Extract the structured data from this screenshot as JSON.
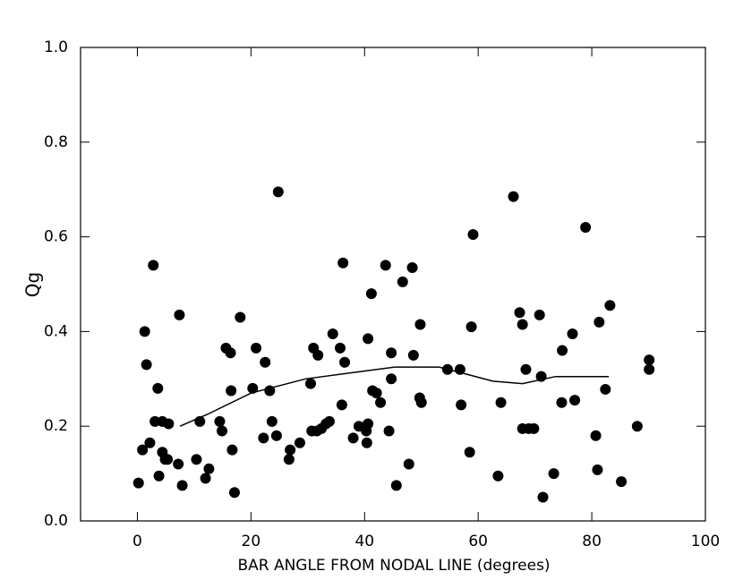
{
  "chart_data": {
    "type": "scatter",
    "x_label": "BAR ANGLE FROM NODAL LINE (degrees)",
    "y_label": "Qg",
    "x": [
      0.2,
      1.3,
      1.6,
      0.9,
      2.2,
      2.8,
      3.6,
      3.1,
      3.8,
      4.4,
      4.9,
      4.4,
      5.5,
      5.3,
      7.4,
      7.2,
      7.9,
      10.4,
      11,
      12,
      12.6,
      14.5,
      14.9,
      15.6,
      16.4,
      16.5,
      16.7,
      17.1,
      18.1,
      20.3,
      20.9,
      22.5,
      22.2,
      23.3,
      23.7,
      24.5,
      24.8,
      26.7,
      26.9,
      28.6,
      30.5,
      31,
      31.8,
      30.7,
      31.6,
      32.4,
      33.2,
      33.8,
      34.4,
      35.7,
      36.2,
      36.5,
      36,
      38,
      39,
      40.3,
      40.4,
      40.6,
      41.2,
      41.4,
      42.1,
      42.8,
      40.6,
      43.7,
      44.7,
      44.7,
      44.3,
      45.6,
      46.7,
      47.8,
      48.4,
      48.6,
      49.8,
      49.7,
      50,
      54.6,
      56.8,
      57,
      58.5,
      58.8,
      59.1,
      63.5,
      64,
      66.2,
      67.3,
      67.8,
      67.8,
      68.9,
      68.4,
      69.8,
      70.8,
      71.1,
      71.4,
      73.3,
      74.7,
      74.8,
      76.6,
      77,
      78.9,
      80.7,
      81.3,
      81,
      82.4,
      83.2,
      85.2,
      88,
      90.1,
      90.1
    ],
    "values": [
      0.08,
      0.4,
      0.33,
      0.15,
      0.165,
      0.54,
      0.28,
      0.21,
      0.095,
      0.145,
      0.13,
      0.21,
      0.205,
      0.13,
      0.435,
      0.12,
      0.075,
      0.13,
      0.21,
      0.09,
      0.11,
      0.21,
      0.19,
      0.365,
      0.355,
      0.275,
      0.15,
      0.06,
      0.43,
      0.28,
      0.365,
      0.335,
      0.175,
      0.275,
      0.21,
      0.18,
      0.695,
      0.13,
      0.15,
      0.165,
      0.29,
      0.365,
      0.35,
      0.19,
      0.19,
      0.195,
      0.205,
      0.21,
      0.395,
      0.365,
      0.545,
      0.335,
      0.245,
      0.175,
      0.2,
      0.19,
      0.165,
      0.385,
      0.48,
      0.275,
      0.27,
      0.25,
      0.205,
      0.54,
      0.3,
      0.355,
      0.19,
      0.075,
      0.505,
      0.12,
      0.535,
      0.35,
      0.415,
      0.26,
      0.25,
      0.32,
      0.32,
      0.245,
      0.145,
      0.41,
      0.605,
      0.095,
      0.25,
      0.685,
      0.44,
      0.415,
      0.195,
      0.195,
      0.32,
      0.195,
      0.435,
      0.305,
      0.05,
      0.1,
      0.25,
      0.36,
      0.395,
      0.255,
      0.62,
      0.18,
      0.42,
      0.108,
      0.278,
      0.455,
      0.083,
      0.2,
      0.34,
      0.32
    ],
    "color": "#000000",
    "line": {
      "x": [
        7.5,
        12.3,
        20,
        29.6,
        39,
        45.3,
        53.1,
        57.9,
        62.6,
        67.8,
        73.6,
        83
      ],
      "values": [
        0.2,
        0.225,
        0.27,
        0.3,
        0.315,
        0.325,
        0.325,
        0.31,
        0.295,
        0.29,
        0.305,
        0.305
      ]
    },
    "xlim": [
      -10,
      100
    ],
    "ylim": [
      0,
      1
    ],
    "xticks": [
      0,
      20,
      40,
      60,
      80,
      100
    ],
    "yticks": [
      {
        "value": 0,
        "label": "0.0"
      },
      0.2,
      0.4,
      0.6,
      0.8,
      {
        "value": 1,
        "label": "1.0"
      }
    ]
  }
}
